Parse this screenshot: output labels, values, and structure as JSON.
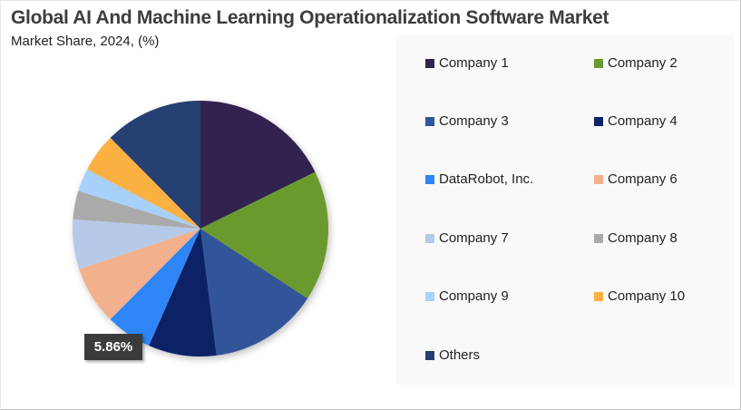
{
  "header": {
    "title": "Global AI And Machine Learning Operationalization  Software Market",
    "subtitle": "Market Share, 2024, (%)"
  },
  "highlight_label": "5.86%",
  "chart_data": {
    "type": "pie",
    "title": "Global AI And Machine Learning Operationalization Software Market",
    "subtitle": "Market Share, 2024, (%)",
    "legend_position": "right",
    "start_angle_deg": 0,
    "direction": "clockwise",
    "categories": [
      "Company 1",
      "Company 2",
      "Company 3",
      "Company 4",
      "DataRobot, Inc.",
      "Company 6",
      "Company 7",
      "Company 8",
      "Company 9",
      "Company 10",
      "Others"
    ],
    "values": [
      17.7,
      16.5,
      13.8,
      8.6,
      5.86,
      7.4,
      6.3,
      3.6,
      2.9,
      4.9,
      12.44
    ],
    "colors": [
      "#31244f",
      "#6a9a2f",
      "#30559a",
      "#0c2366",
      "#2f86f6",
      "#f2b08c",
      "#b6c9e8",
      "#aaaaaa",
      "#a7d1fb",
      "#fbb142",
      "#263f73"
    ],
    "annotations": [
      {
        "category": "DataRobot, Inc.",
        "label": "5.86%"
      }
    ]
  },
  "legend": {
    "items": [
      {
        "label": "Company 1",
        "color": "#31244f"
      },
      {
        "label": "Company 2",
        "color": "#6a9a2f"
      },
      {
        "label": "Company 3",
        "color": "#30559a"
      },
      {
        "label": "Company 4",
        "color": "#0c2366"
      },
      {
        "label": "DataRobot, Inc.",
        "color": "#2f86f6"
      },
      {
        "label": "Company 6",
        "color": "#f2b08c"
      },
      {
        "label": "Company 7",
        "color": "#b6c9e8"
      },
      {
        "label": "Company 8",
        "color": "#aaaaaa"
      },
      {
        "label": "Company 9",
        "color": "#a7d1fb"
      },
      {
        "label": "Company 10",
        "color": "#fbb142"
      },
      {
        "label": "Others",
        "color": "#263f73"
      }
    ]
  }
}
